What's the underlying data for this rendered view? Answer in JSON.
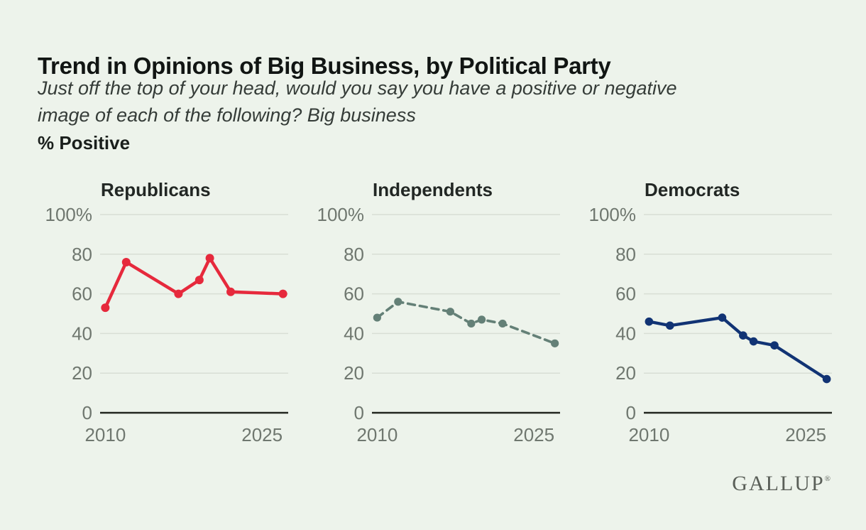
{
  "header": {
    "title": "Trend in Opinions of Big Business, by Political Party",
    "subtitle_line1": "Just off the top of your head, would you say you have a positive or negative",
    "subtitle_line2": "image of each of the following? Big business",
    "metric_label": "% Positive"
  },
  "colors": {
    "background": "#edf3eb",
    "grid": "#d8ded5",
    "axis": "#22261f",
    "tick_text": "#6f776f",
    "republicans": "#e6293c",
    "independents": "#648077",
    "democrats": "#113374",
    "logo": "#5a5f58"
  },
  "chart_data": [
    {
      "type": "line",
      "title": "Republicans",
      "series_name": "Republicans",
      "line_style": "solid",
      "color": "#e6293c",
      "line_width": 4.5,
      "point_radius": 6,
      "x": [
        2010,
        2012,
        2017,
        2019,
        2020,
        2022,
        2027
      ],
      "values": [
        53,
        76,
        60,
        67,
        78,
        61,
        60
      ],
      "xlim": [
        2009.5,
        2027.5
      ],
      "ylim": [
        0,
        100
      ],
      "yticks": [
        100,
        80,
        60,
        40,
        20,
        0
      ],
      "ytick_labels": [
        "100%",
        "80",
        "60",
        "40",
        "20",
        "0"
      ],
      "xticks": [
        2010,
        2025
      ],
      "xtick_labels": [
        "2010",
        "2025"
      ],
      "grid": true,
      "legend": "none"
    },
    {
      "type": "line",
      "title": "Independents",
      "series_name": "Independents",
      "line_style": "dashed",
      "color": "#648077",
      "line_width": 3.6,
      "point_radius": 5.6,
      "x": [
        2010,
        2012,
        2017,
        2019,
        2020,
        2022,
        2027
      ],
      "values": [
        48,
        56,
        51,
        45,
        47,
        45,
        35
      ],
      "xlim": [
        2009.5,
        2027.5
      ],
      "ylim": [
        0,
        100
      ],
      "yticks": [
        100,
        80,
        60,
        40,
        20,
        0
      ],
      "ytick_labels": [
        "100%",
        "80",
        "60",
        "40",
        "20",
        "0"
      ],
      "xticks": [
        2010,
        2025
      ],
      "xtick_labels": [
        "2010",
        "2025"
      ],
      "grid": true,
      "legend": "none"
    },
    {
      "type": "line",
      "title": "Democrats",
      "series_name": "Democrats",
      "line_style": "solid",
      "color": "#113374",
      "line_width": 4.3,
      "point_radius": 5.8,
      "x": [
        2010,
        2012,
        2017,
        2019,
        2020,
        2022,
        2027
      ],
      "values": [
        46,
        44,
        48,
        39,
        36,
        34,
        17
      ],
      "xlim": [
        2009.5,
        2027.5
      ],
      "ylim": [
        0,
        100
      ],
      "yticks": [
        100,
        80,
        60,
        40,
        20,
        0
      ],
      "ytick_labels": [
        "100%",
        "80",
        "60",
        "40",
        "20",
        "0"
      ],
      "xticks": [
        2010,
        2025
      ],
      "xtick_labels": [
        "2010",
        "2025"
      ],
      "grid": true,
      "legend": "none"
    }
  ],
  "footer": {
    "logo_text": "GALLUP",
    "registered_mark": "®"
  }
}
